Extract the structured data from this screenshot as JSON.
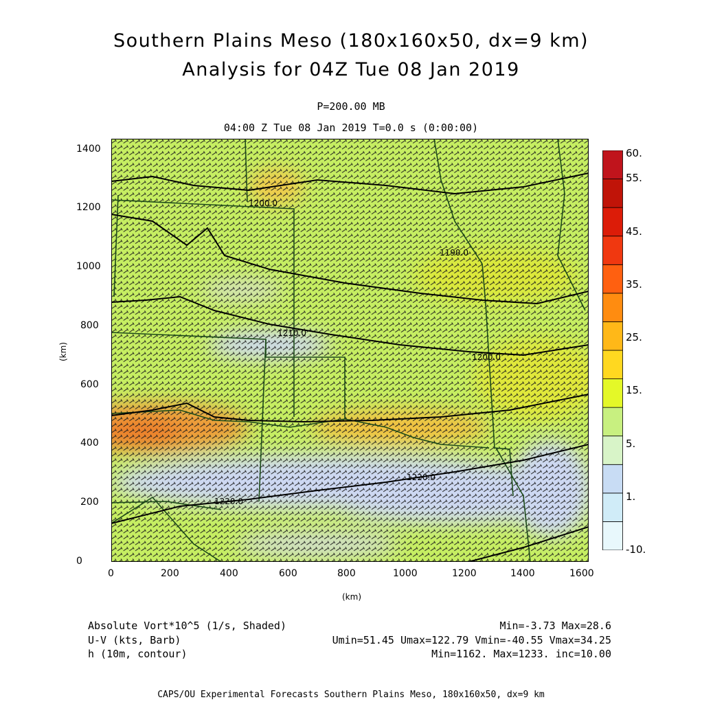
{
  "header": {
    "title_line1": "Southern Plains Meso (180x160x50, dx=9 km)",
    "title_line2": "Analysis for 04Z Tue 08 Jan 2019",
    "level": "P=200.00 MB",
    "valid_time": "04:00 Z Tue 08 Jan 2019    T=0.0 s (0:00:00)"
  },
  "map": {
    "x_ticks": [
      "0",
      "200",
      "400",
      "600",
      "800",
      "1000",
      "1200",
      "1400",
      "1600"
    ],
    "y_ticks": [
      "0",
      "200",
      "400",
      "600",
      "800",
      "1000",
      "1200",
      "1400"
    ],
    "x_unit": "(km)",
    "y_unit": "(km)",
    "x_range_km": [
      0,
      1620
    ],
    "y_range_km": [
      0,
      1440
    ],
    "contour_labels": [
      "1200.0",
      "1190.0",
      "1210.0",
      "1200.0",
      "1220.0",
      "1220.0"
    ],
    "colors": {
      "background_field": "#c6ee62",
      "low_field": "#ccd8f4",
      "high_field": "#f0b83c",
      "max_field": "#ee8a30",
      "contour": "#000000",
      "boundaries": "#1c4a18",
      "barbs": "#1a1a1a"
    }
  },
  "colorbar": {
    "labels": [
      "60.",
      "55.",
      "45.",
      "35.",
      "25.",
      "15.",
      "5.",
      "1.",
      "-10."
    ],
    "colors": [
      "#e8f8fc",
      "#d0ecf8",
      "#c8dcf4",
      "#d8f4c8",
      "#c8f080",
      "#e4f828",
      "#ffd820",
      "#ffb818",
      "#ff8c10",
      "#ff6010",
      "#f03810",
      "#dc1c08",
      "#c01408",
      "#c0141c"
    ]
  },
  "footer": {
    "var1_name": "Absolute Vort*10^5 (1/s, Shaded)",
    "var1_stats": "Min=-3.73 Max=28.6",
    "var2_name": "U-V (kts, Barb)",
    "var2_stats": "Umin=51.45 Umax=122.79 Vmin=-40.55 Vmax=34.25",
    "var3_name": "h (10m, contour)",
    "var3_stats": "Min=1162. Max=1233. inc=10.00",
    "credit": "CAPS/OU Experimental Forecasts  Southern Plains Meso, 180x160x50, dx=9 km"
  }
}
